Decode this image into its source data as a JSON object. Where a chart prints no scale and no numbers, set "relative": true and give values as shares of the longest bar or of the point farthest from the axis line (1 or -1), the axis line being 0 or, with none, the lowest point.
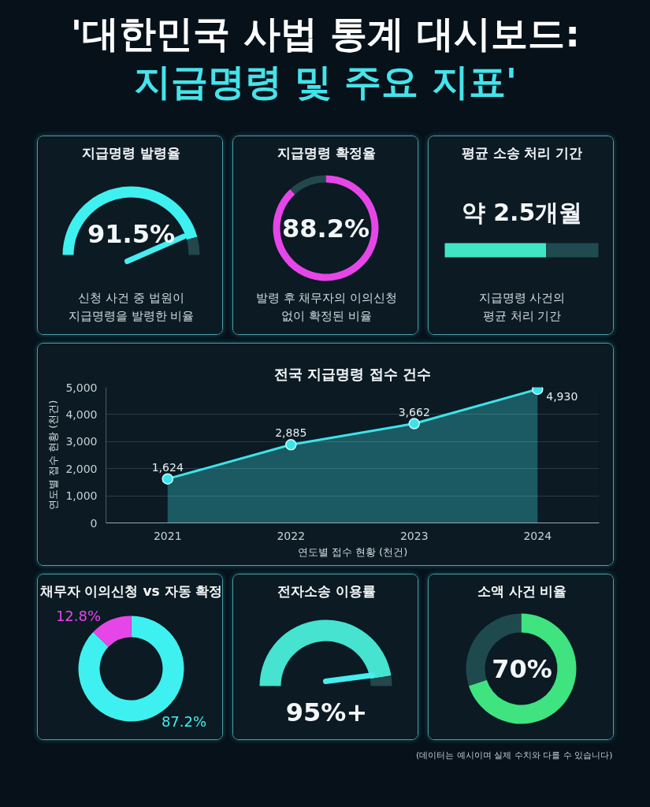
{
  "chart_data": [
    {
      "type": "other",
      "title": "'대한민국 사법 통계 대시보드:",
      "subtitle": "지급명령 및 주요 지표'"
    },
    {
      "type": "donut",
      "title": "지급명령 발령율",
      "categories": [
        null,
        null
      ],
      "values": [
        91.5,
        8.5
      ],
      "colors": [
        "#3ff0f0",
        "#24474c"
      ],
      "needle": null,
      "value_labels": [
        "91.5%",
        null
      ],
      "annotations": [
        "신청 사건 중 법원이",
        "지급명령을 발령한 비율"
      ]
    },
    {
      "type": "donut",
      "title": "지급명령 확정율",
      "categories": [
        null,
        null
      ],
      "values": [
        88.2,
        11.8
      ],
      "colors": [
        "#e646e8",
        "#24474c"
      ],
      "value_labels": [
        "88.2%",
        null
      ],
      "annotations": [
        "발령 후 채무자의 이의신청",
        "없이 확정된 비율"
      ]
    },
    {
      "type": "bar",
      "title": "평균 소송 처리 기간",
      "orientation": "horizontal",
      "stacked": true,
      "relative": true,
      "categories": [
        null
      ],
      "series": [
        {
          "color": "#40e6c4",
          "values": [
            0.66
          ]
        },
        {
          "color": "#1f4a4f",
          "values": [
            0.34
          ]
        }
      ],
      "annotations": [
        "약 2.5개월",
        "지급명령 사건의",
        "평균 처리 기간"
      ]
    },
    {
      "type": "area",
      "title": "전국 지급명령 접수 건수",
      "xlabel": "연도별 접수 현황 (천건)",
      "ylabel": "연도별 접수 현황 (천건)",
      "categories": [
        "2021",
        "2022",
        "2023",
        "2024"
      ],
      "values": [
        1624,
        2885,
        3662,
        4930
      ],
      "value_labels": [
        "1,624",
        "2,885",
        "3,662",
        "4,930"
      ],
      "color": "#3de3ea",
      "marker": "circle",
      "ylim": [
        0,
        5000
      ],
      "yticks": [
        0,
        {
          "value": 1000,
          "label": "1,000"
        },
        {
          "value": 2000,
          "label": "2,000"
        },
        {
          "value": 3000,
          "label": "3,000"
        },
        {
          "value": 4000,
          "label": "4,000"
        },
        {
          "value": 5000,
          "label": "5,000"
        }
      ],
      "grid": "y"
    },
    {
      "type": "donut",
      "title": "채무자 이의신청 vs 자동 확정",
      "categories": [
        null,
        null
      ],
      "values": [
        87.2,
        12.8
      ],
      "colors": [
        "#3ff0f0",
        "#e646e8"
      ],
      "value_labels": [
        "87.2%",
        "12.8%"
      ]
    },
    {
      "type": "donut",
      "title": "전자소송 이용률",
      "categories": [
        null,
        null
      ],
      "values": [
        95,
        5
      ],
      "colors": [
        "#45e3d0",
        "#24474c"
      ],
      "needle": null,
      "annotations": [
        "95%+"
      ]
    },
    {
      "type": "donut",
      "title": "소액 사건 비율",
      "categories": [
        null,
        null
      ],
      "values": [
        70,
        30
      ],
      "colors": [
        "#3fe37f",
        "#1e4a4e"
      ],
      "annotations": [
        "70%"
      ]
    },
    {
      "type": "other",
      "annotations": [
        "(데이터는 예시이며 실제 수치와 다를 수 있습니다)"
      ]
    }
  ]
}
